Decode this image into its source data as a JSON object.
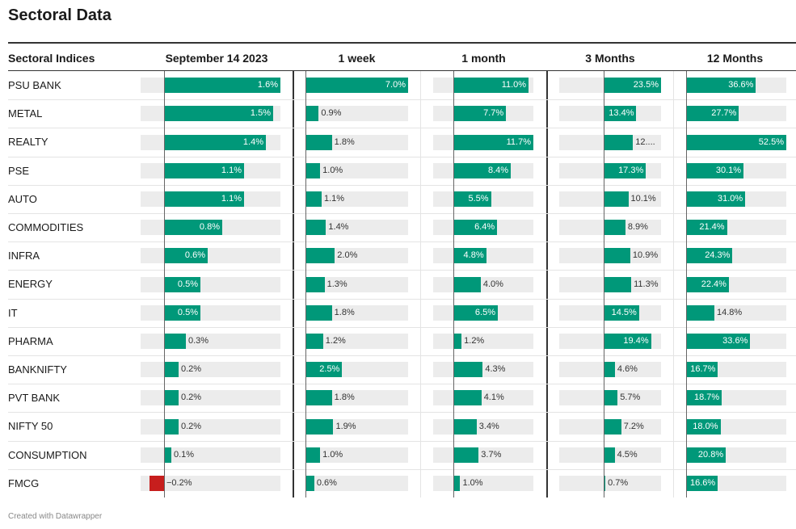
{
  "title": "Sectoral Data",
  "footer": "Created with Datawrapper",
  "colors": {
    "positive": "#009879",
    "negative": "#c71e1d",
    "track": "#ececec"
  },
  "chart_data": {
    "type": "table",
    "row_header": "Sectoral Indices",
    "columns": [
      {
        "key": "day",
        "label": "September 14 2023",
        "domain": [
          -0.2,
          1.6
        ]
      },
      {
        "key": "week",
        "label": "1 week",
        "domain": [
          0,
          7.0
        ]
      },
      {
        "key": "month",
        "label": "1 month",
        "domain": [
          0,
          11.7
        ]
      },
      {
        "key": "m3",
        "label": "3 Months",
        "domain": [
          0,
          23.5
        ]
      },
      {
        "key": "m12",
        "label": "12 Months",
        "domain": [
          0,
          52.5
        ]
      }
    ],
    "rows": [
      {
        "name": "PSU BANK",
        "values": [
          1.6,
          7.0,
          11.0,
          23.5,
          36.6
        ],
        "labels": [
          "1.6%",
          "7.0%",
          "11.0%",
          "23.5%",
          "36.6%"
        ]
      },
      {
        "name": "METAL",
        "values": [
          1.5,
          0.9,
          7.7,
          13.4,
          27.7
        ],
        "labels": [
          "1.5%",
          "0.9%",
          "7.7%",
          "13.4%",
          "27.7%"
        ]
      },
      {
        "name": "REALTY",
        "values": [
          1.4,
          1.8,
          11.7,
          12.0,
          52.5
        ],
        "labels": [
          "1.4%",
          "1.8%",
          "11.7%",
          "12....",
          "52.5%"
        ]
      },
      {
        "name": "PSE",
        "values": [
          1.1,
          1.0,
          8.4,
          17.3,
          30.1
        ],
        "labels": [
          "1.1%",
          "1.0%",
          "8.4%",
          "17.3%",
          "30.1%"
        ]
      },
      {
        "name": "AUTO",
        "values": [
          1.1,
          1.1,
          5.5,
          10.1,
          31.0
        ],
        "labels": [
          "1.1%",
          "1.1%",
          "5.5%",
          "10.1%",
          "31.0%"
        ]
      },
      {
        "name": "COMMODITIES",
        "values": [
          0.8,
          1.4,
          6.4,
          8.9,
          21.4
        ],
        "labels": [
          "0.8%",
          "1.4%",
          "6.4%",
          "8.9%",
          "21.4%"
        ]
      },
      {
        "name": "INFRA",
        "values": [
          0.6,
          2.0,
          4.8,
          10.9,
          24.3
        ],
        "labels": [
          "0.6%",
          "2.0%",
          "4.8%",
          "10.9%",
          "24.3%"
        ]
      },
      {
        "name": "ENERGY",
        "values": [
          0.5,
          1.3,
          4.0,
          11.3,
          22.4
        ],
        "labels": [
          "0.5%",
          "1.3%",
          "4.0%",
          "11.3%",
          "22.4%"
        ]
      },
      {
        "name": "IT",
        "values": [
          0.5,
          1.8,
          6.5,
          14.5,
          14.8
        ],
        "labels": [
          "0.5%",
          "1.8%",
          "6.5%",
          "14.5%",
          "14.8%"
        ]
      },
      {
        "name": "PHARMA",
        "values": [
          0.3,
          1.2,
          1.2,
          19.4,
          33.6
        ],
        "labels": [
          "0.3%",
          "1.2%",
          "1.2%",
          "19.4%",
          "33.6%"
        ]
      },
      {
        "name": "BANKNIFTY",
        "values": [
          0.2,
          2.5,
          4.3,
          4.6,
          16.7
        ],
        "labels": [
          "0.2%",
          "2.5%",
          "4.3%",
          "4.6%",
          "16.7%"
        ]
      },
      {
        "name": "PVT BANK",
        "values": [
          0.2,
          1.8,
          4.1,
          5.7,
          18.7
        ],
        "labels": [
          "0.2%",
          "1.8%",
          "4.1%",
          "5.7%",
          "18.7%"
        ]
      },
      {
        "name": "NIFTY 50",
        "values": [
          0.2,
          1.9,
          3.4,
          7.2,
          18.0
        ],
        "labels": [
          "0.2%",
          "1.9%",
          "3.4%",
          "7.2%",
          "18.0%"
        ]
      },
      {
        "name": "CONSUMPTION",
        "values": [
          0.1,
          1.0,
          3.7,
          4.5,
          20.8
        ],
        "labels": [
          "0.1%",
          "1.0%",
          "3.7%",
          "4.5%",
          "20.8%"
        ]
      },
      {
        "name": "FMCG",
        "values": [
          -0.2,
          0.6,
          1.0,
          0.7,
          16.6
        ],
        "labels": [
          "−0.2%",
          "0.6%",
          "1.0%",
          "0.7%",
          "16.6%"
        ]
      }
    ]
  }
}
